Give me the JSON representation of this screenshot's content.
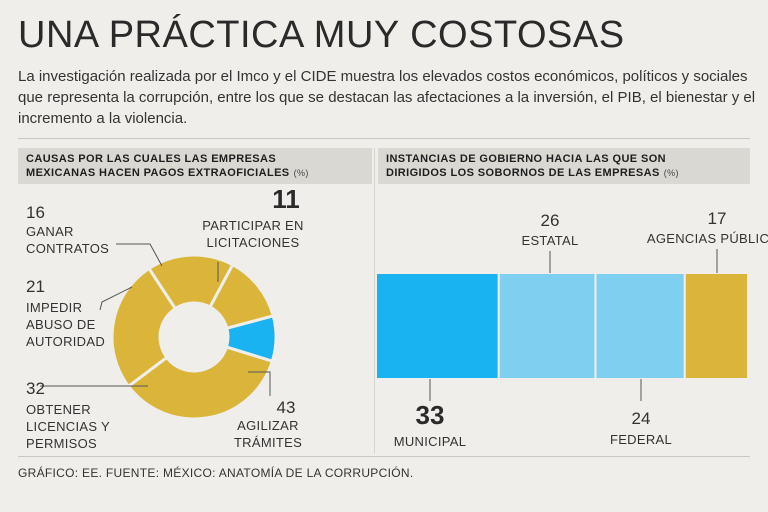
{
  "title": "UNA PRÁCTICA MUY COSTOSAS",
  "intro": "La investigación realizada por el Imco y el CIDE muestra los elevados costos económicos, políticos y sociales que representa la corrupción, entre los que se destacan las afectaciones a la inversión, el PIB, el bienestar y el incremento a la violencia.",
  "footer": "GRÁFICO: EE. FUENTE: MÉXICO: ANATOMÍA DE LA CORRUPCIÓN.",
  "colors": {
    "gold": "#dab53a",
    "blue": "#1ab3f2",
    "light_blue": "#7fcff0",
    "bg": "#efeeea"
  },
  "chart_data": [
    {
      "type": "pie",
      "title_line1": "CAUSAS POR LAS CUALES LAS EMPRESAS",
      "title_line2": "MEXICANAS HACEN PAGOS EXTRAOFICIALES",
      "unit": "(%)",
      "slices": [
        {
          "label": "PARTICIPAR EN LICITACIONES",
          "label_lines": [
            "PARTICIPAR EN",
            "LICITACIONES"
          ],
          "value": 11,
          "color": "#1ab3f2"
        },
        {
          "label": "AGILIZAR TRÁMITES",
          "label_lines": [
            "AGILIZAR",
            "TRÁMITES"
          ],
          "value": 43,
          "color": "#dab53a"
        },
        {
          "label": "OBTENER LICENCIAS Y PERMISOS",
          "label_lines": [
            "OBTENER",
            "LICENCIAS Y",
            "PERMISOS"
          ],
          "value": 32,
          "color": "#dab53a"
        },
        {
          "label": "IMPEDIR ABUSO DE AUTORIDAD",
          "label_lines": [
            "IMPEDIR",
            "ABUSO DE",
            "AUTORIDAD"
          ],
          "value": 21,
          "color": "#dab53a"
        },
        {
          "label": "GANAR CONTRATOS",
          "label_lines": [
            "GANAR",
            "CONTRATOS"
          ],
          "value": 16,
          "color": "#dab53a"
        }
      ]
    },
    {
      "type": "bar",
      "orientation": "horizontal-stacked",
      "title_line1": "INSTANCIAS DE GOBIERNO HACIA LAS QUE SON",
      "title_line2": "DIRIGIDOS LOS SOBORNOS DE LAS EMPRESAS",
      "unit": "(%)",
      "segments": [
        {
          "label": "MUNICIPAL",
          "value": 33,
          "color": "#1ab3f2"
        },
        {
          "label": "ESTATAL",
          "value": 26,
          "color": "#7fcff0"
        },
        {
          "label": "FEDERAL",
          "value": 24,
          "color": "#7fcff0"
        },
        {
          "label": "AGENCIAS PÚBLICAS",
          "value": 17,
          "color": "#dab53a"
        }
      ]
    }
  ]
}
